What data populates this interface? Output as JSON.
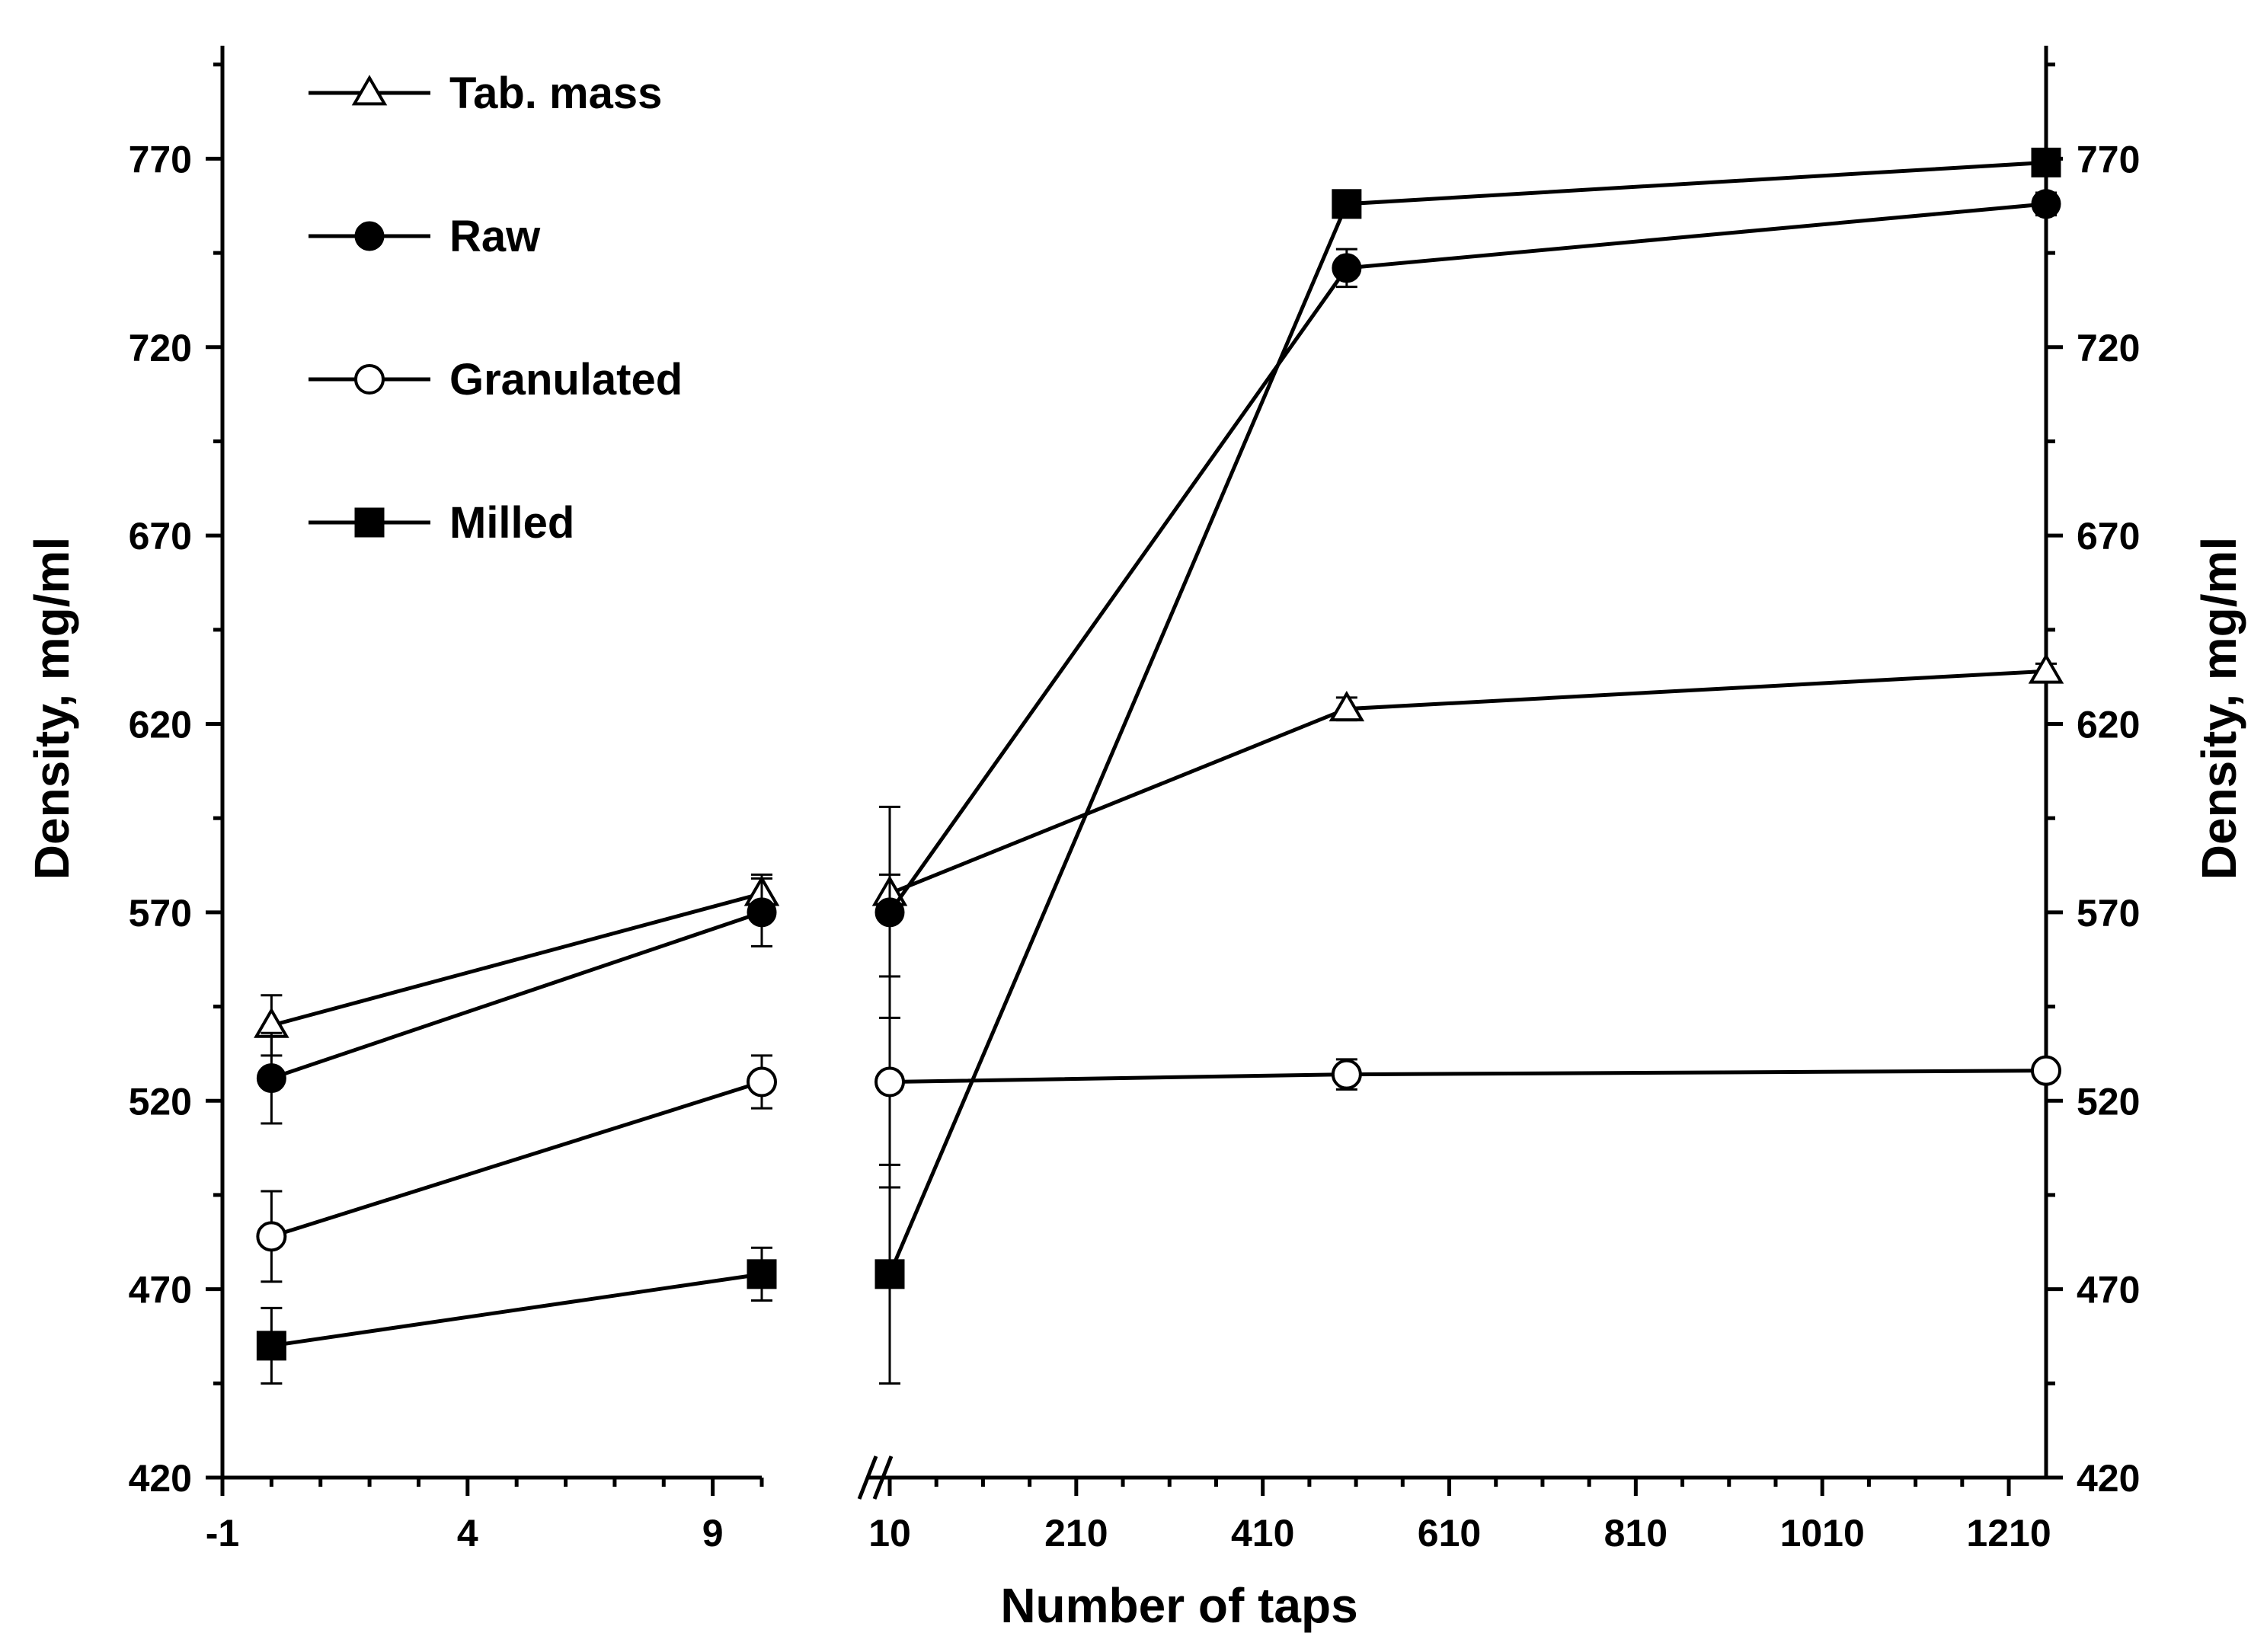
{
  "chart_data": {
    "type": "line",
    "xlabel": "Number of taps",
    "ylabel_left": "Density, mg/ml",
    "ylabel_right": "Density, mg/ml",
    "ylim": [
      420,
      800
    ],
    "y_ticks": [
      420,
      470,
      520,
      570,
      620,
      670,
      720,
      770
    ],
    "x_break": true,
    "left_panel": {
      "xlim": [
        -1,
        10
      ],
      "x_ticks": [
        -1,
        4,
        9
      ]
    },
    "right_panel": {
      "xlim": [
        10,
        1250
      ],
      "x_ticks": [
        10,
        210,
        410,
        610,
        810,
        1010,
        1210
      ]
    },
    "legend_position": "top-left",
    "series": [
      {
        "name": "Tab. mass",
        "marker": "triangle-open",
        "points": [
          {
            "x": 0,
            "y": 540,
            "err": 8
          },
          {
            "x": 10,
            "y": 575,
            "err": 5
          },
          {
            "x": 10,
            "y": 575,
            "err": 5,
            "panel": "right"
          },
          {
            "x": 500,
            "y": 624,
            "err": 3,
            "panel": "right"
          },
          {
            "x": 1250,
            "y": 634,
            "err": 2,
            "panel": "right"
          }
        ]
      },
      {
        "name": "Raw",
        "marker": "circle-filled",
        "points": [
          {
            "x": 0,
            "y": 526,
            "err": 12
          },
          {
            "x": 10,
            "y": 570,
            "err": 9
          },
          {
            "x": 10,
            "y": 570,
            "err": 28,
            "panel": "right"
          },
          {
            "x": 500,
            "y": 741,
            "err": 5,
            "panel": "right"
          },
          {
            "x": 1250,
            "y": 758,
            "err": 3,
            "panel": "right"
          }
        ]
      },
      {
        "name": "Granulated",
        "marker": "circle-open",
        "points": [
          {
            "x": 0,
            "y": 484,
            "err": 12
          },
          {
            "x": 10,
            "y": 525,
            "err": 7
          },
          {
            "x": 10,
            "y": 525,
            "err": 28,
            "panel": "right"
          },
          {
            "x": 500,
            "y": 527,
            "err": 4,
            "panel": "right"
          },
          {
            "x": 1250,
            "y": 528,
            "err": 2,
            "panel": "right"
          }
        ]
      },
      {
        "name": "Milled",
        "marker": "square-filled",
        "points": [
          {
            "x": 0,
            "y": 455,
            "err": 10
          },
          {
            "x": 10,
            "y": 474,
            "err": 7
          },
          {
            "x": 10,
            "y": 474,
            "err": 29,
            "panel": "right"
          },
          {
            "x": 500,
            "y": 758,
            "err": 3,
            "panel": "right"
          },
          {
            "x": 1250,
            "y": 769,
            "err": 2,
            "panel": "right"
          }
        ]
      }
    ]
  }
}
